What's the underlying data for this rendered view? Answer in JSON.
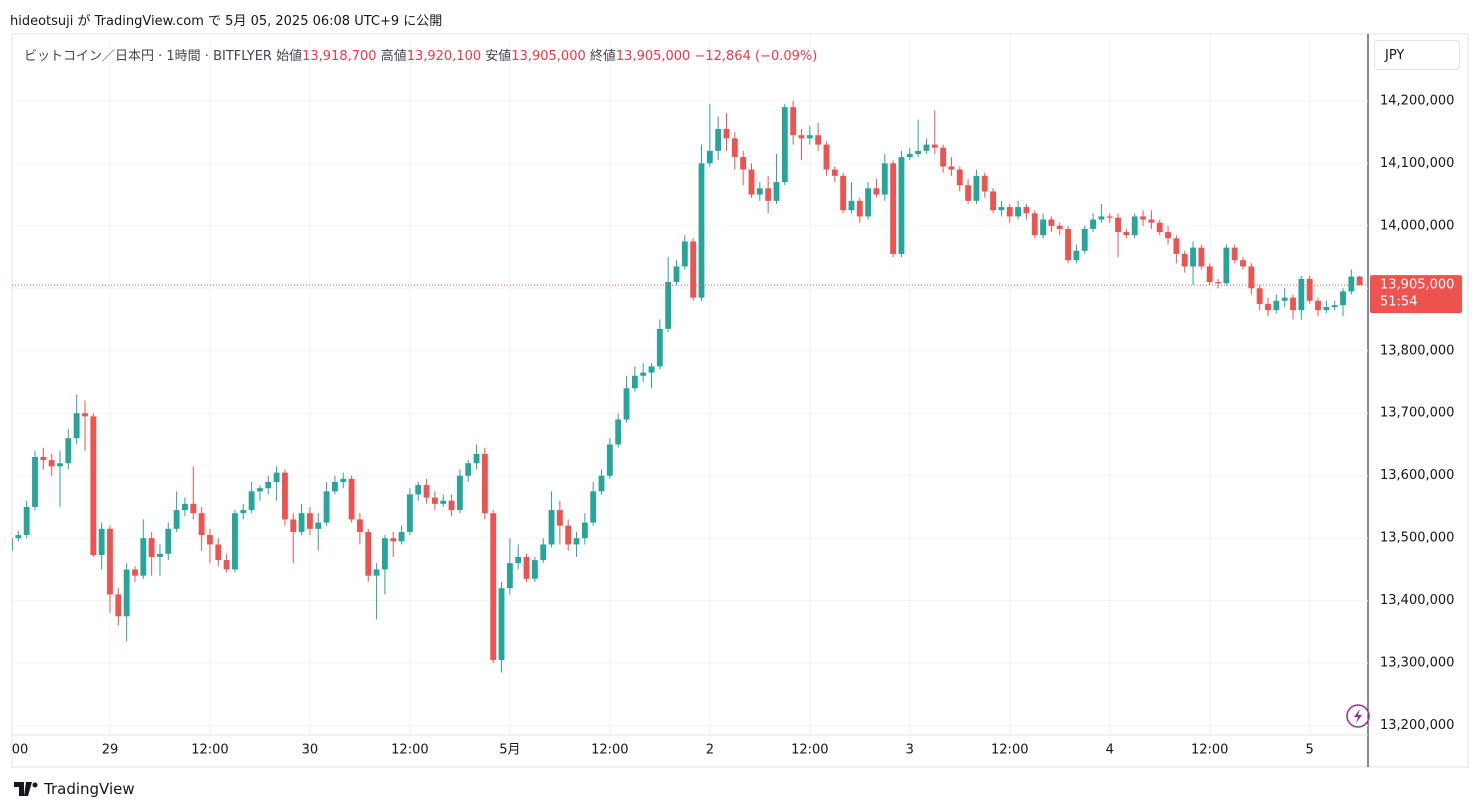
{
  "header": {
    "published": "hideotsuji が TradingView.com で 5月 05, 2025 06:08 UTC+9 に公開"
  },
  "legend": {
    "symbol": "ビットコイン／日本円 · 1時間 · BITFLYER",
    "open_label": "始値",
    "open": "13,918,700",
    "high_label": "高値",
    "high": "13,920,100",
    "low_label": "安値",
    "low": "13,905,000",
    "close_label": "終値",
    "close": "13,905,000",
    "change": "−12,864 (−0.09%)"
  },
  "currency": "JPY",
  "footer": {
    "brand": "TradingView"
  },
  "chart_data": {
    "type": "candlestick",
    "up_color": "#26a69a",
    "down_color": "#ef5350",
    "grid": true,
    "xlim": [
      0,
      163
    ],
    "xticks": [
      {
        "value": 0,
        "label": "00"
      },
      {
        "value": 12,
        "label": "29"
      },
      {
        "value": 24,
        "label": "12:00"
      },
      {
        "value": 36,
        "label": "30"
      },
      {
        "value": 48,
        "label": "12:00"
      },
      {
        "value": 60,
        "label": "5月"
      },
      {
        "value": 72,
        "label": "12:00"
      },
      {
        "value": 84,
        "label": "2"
      },
      {
        "value": 96,
        "label": "12:00"
      },
      {
        "value": 108,
        "label": "3"
      },
      {
        "value": 120,
        "label": "12:00"
      },
      {
        "value": 132,
        "label": "4"
      },
      {
        "value": 144,
        "label": "12:00"
      },
      {
        "value": 156,
        "label": "5"
      }
    ],
    "ylim": [
      13185000,
      14307000
    ],
    "yticks": [
      {
        "value": 13200000,
        "label": "13,200,000"
      },
      {
        "value": 13300000,
        "label": "13,300,000"
      },
      {
        "value": 13400000,
        "label": "13,400,000"
      },
      {
        "value": 13500000,
        "label": "13,500,000"
      },
      {
        "value": 13600000,
        "label": "13,600,000"
      },
      {
        "value": 13700000,
        "label": "13,700,000"
      },
      {
        "value": 13800000,
        "label": "13,800,000"
      },
      {
        "value": 13900000,
        "label": "13,900,000"
      },
      {
        "value": 14000000,
        "label": "14,000,000"
      },
      {
        "value": 14100000,
        "label": "14,100,000"
      },
      {
        "value": 14200000,
        "label": "14,200,000"
      }
    ],
    "last_price": {
      "value": 13905000,
      "label": "13,905,000",
      "countdown": "51:54"
    },
    "candles": [
      [
        13480000,
        13510000,
        13470000,
        13500000
      ],
      [
        13500000,
        13512000,
        13495000,
        13505000
      ],
      [
        13505000,
        13560000,
        13500000,
        13550000
      ],
      [
        13550000,
        13640000,
        13545000,
        13630000
      ],
      [
        13630000,
        13645000,
        13610000,
        13625000
      ],
      [
        13625000,
        13635000,
        13600000,
        13615000
      ],
      [
        13615000,
        13640000,
        13550000,
        13620000
      ],
      [
        13620000,
        13675000,
        13610000,
        13660000
      ],
      [
        13660000,
        13730000,
        13650000,
        13700000
      ],
      [
        13700000,
        13720000,
        13640000,
        13695000
      ],
      [
        13695000,
        13700000,
        13470000,
        13473000
      ],
      [
        13473000,
        13525000,
        13450000,
        13515000
      ],
      [
        13515000,
        13520000,
        13380000,
        13410000
      ],
      [
        13410000,
        13420000,
        13360000,
        13375000
      ],
      [
        13375000,
        13460000,
        13335000,
        13450000
      ],
      [
        13450000,
        13455000,
        13430000,
        13440000
      ],
      [
        13440000,
        13530000,
        13435000,
        13500000
      ],
      [
        13500000,
        13510000,
        13440000,
        13470000
      ],
      [
        13470000,
        13490000,
        13440000,
        13475000
      ],
      [
        13475000,
        13525000,
        13465000,
        13515000
      ],
      [
        13515000,
        13575000,
        13510000,
        13545000
      ],
      [
        13545000,
        13565000,
        13535000,
        13555000
      ],
      [
        13555000,
        13615000,
        13530000,
        13540000
      ],
      [
        13540000,
        13550000,
        13480000,
        13505000
      ],
      [
        13505000,
        13515000,
        13460000,
        13490000
      ],
      [
        13490000,
        13500000,
        13455000,
        13465000
      ],
      [
        13465000,
        13475000,
        13445000,
        13450000
      ],
      [
        13450000,
        13545000,
        13445000,
        13540000
      ],
      [
        13540000,
        13555000,
        13530000,
        13545000
      ],
      [
        13545000,
        13590000,
        13540000,
        13575000
      ],
      [
        13575000,
        13585000,
        13560000,
        13580000
      ],
      [
        13580000,
        13600000,
        13570000,
        13590000
      ],
      [
        13590000,
        13615000,
        13560000,
        13605000
      ],
      [
        13605000,
        13610000,
        13520000,
        13530000
      ],
      [
        13530000,
        13540000,
        13460000,
        13510000
      ],
      [
        13510000,
        13555000,
        13505000,
        13540000
      ],
      [
        13540000,
        13550000,
        13505000,
        13515000
      ],
      [
        13515000,
        13540000,
        13480000,
        13525000
      ],
      [
        13525000,
        13590000,
        13520000,
        13575000
      ],
      [
        13575000,
        13600000,
        13570000,
        13590000
      ],
      [
        13590000,
        13605000,
        13580000,
        13595000
      ],
      [
        13595000,
        13600000,
        13525000,
        13530000
      ],
      [
        13530000,
        13540000,
        13490000,
        13510000
      ],
      [
        13510000,
        13515000,
        13430000,
        13440000
      ],
      [
        13440000,
        13460000,
        13370000,
        13450000
      ],
      [
        13450000,
        13505000,
        13410000,
        13500000
      ],
      [
        13500000,
        13510000,
        13470000,
        13495000
      ],
      [
        13495000,
        13520000,
        13490000,
        13510000
      ],
      [
        13510000,
        13580000,
        13505000,
        13570000
      ],
      [
        13570000,
        13590000,
        13560000,
        13585000
      ],
      [
        13585000,
        13595000,
        13555000,
        13565000
      ],
      [
        13565000,
        13575000,
        13545000,
        13555000
      ],
      [
        13555000,
        13570000,
        13550000,
        13560000
      ],
      [
        13560000,
        13570000,
        13535000,
        13545000
      ],
      [
        13545000,
        13610000,
        13540000,
        13600000
      ],
      [
        13600000,
        13625000,
        13590000,
        13620000
      ],
      [
        13620000,
        13650000,
        13610000,
        13635000
      ],
      [
        13635000,
        13645000,
        13530000,
        13540000
      ],
      [
        13540000,
        13545000,
        13300000,
        13305000
      ],
      [
        13305000,
        13430000,
        13285000,
        13420000
      ],
      [
        13420000,
        13500000,
        13410000,
        13460000
      ],
      [
        13460000,
        13490000,
        13450000,
        13470000
      ],
      [
        13470000,
        13475000,
        13430000,
        13435000
      ],
      [
        13435000,
        13470000,
        13430000,
        13465000
      ],
      [
        13465000,
        13500000,
        13460000,
        13490000
      ],
      [
        13490000,
        13575000,
        13485000,
        13545000
      ],
      [
        13545000,
        13560000,
        13490000,
        13520000
      ],
      [
        13520000,
        13530000,
        13480000,
        13490000
      ],
      [
        13490000,
        13510000,
        13470000,
        13500000
      ],
      [
        13500000,
        13540000,
        13490000,
        13525000
      ],
      [
        13525000,
        13590000,
        13520000,
        13575000
      ],
      [
        13575000,
        13610000,
        13570000,
        13600000
      ],
      [
        13600000,
        13660000,
        13595000,
        13650000
      ],
      [
        13650000,
        13700000,
        13645000,
        13690000
      ],
      [
        13690000,
        13760000,
        13685000,
        13740000
      ],
      [
        13740000,
        13775000,
        13735000,
        13760000
      ],
      [
        13760000,
        13780000,
        13750000,
        13765000
      ],
      [
        13765000,
        13780000,
        13740000,
        13775000
      ],
      [
        13775000,
        13850000,
        13770000,
        13835000
      ],
      [
        13835000,
        13950000,
        13830000,
        13910000
      ],
      [
        13910000,
        13945000,
        13905000,
        13935000
      ],
      [
        13935000,
        13985000,
        13930000,
        13975000
      ],
      [
        13975000,
        13980000,
        13880000,
        13885000
      ],
      [
        13885000,
        14130000,
        13880000,
        14100000
      ],
      [
        14100000,
        14195000,
        14095000,
        14120000
      ],
      [
        14120000,
        14175000,
        14105000,
        14155000
      ],
      [
        14155000,
        14180000,
        14120000,
        14140000
      ],
      [
        14140000,
        14150000,
        14090000,
        14110000
      ],
      [
        14110000,
        14120000,
        14065000,
        14090000
      ],
      [
        14090000,
        14100000,
        14045000,
        14050000
      ],
      [
        14050000,
        14070000,
        14040000,
        14060000
      ],
      [
        14060000,
        14080000,
        14020000,
        14040000
      ],
      [
        14040000,
        14115000,
        14035000,
        14070000
      ],
      [
        14070000,
        14195000,
        14065000,
        14190000
      ],
      [
        14190000,
        14200000,
        14130000,
        14145000
      ],
      [
        14145000,
        14155000,
        14105000,
        14140000
      ],
      [
        14140000,
        14160000,
        14130000,
        14145000
      ],
      [
        14145000,
        14165000,
        14120000,
        14130000
      ],
      [
        14130000,
        14135000,
        14080000,
        14090000
      ],
      [
        14090000,
        14095000,
        14070000,
        14080000
      ],
      [
        14080000,
        14085000,
        14020000,
        14025000
      ],
      [
        14025000,
        14070000,
        14020000,
        14040000
      ],
      [
        14040000,
        14045000,
        14005000,
        14015000
      ],
      [
        14015000,
        14070000,
        14010000,
        14060000
      ],
      [
        14060000,
        14075000,
        14045000,
        14050000
      ],
      [
        14050000,
        14115000,
        14040000,
        14100000
      ],
      [
        14100000,
        14105000,
        13950000,
        13955000
      ],
      [
        13955000,
        14120000,
        13950000,
        14110000
      ],
      [
        14110000,
        14125000,
        14105000,
        14115000
      ],
      [
        14115000,
        14170000,
        14110000,
        14120000
      ],
      [
        14120000,
        14140000,
        14115000,
        14130000
      ],
      [
        14130000,
        14185000,
        14115000,
        14125000
      ],
      [
        14125000,
        14130000,
        14085000,
        14095000
      ],
      [
        14095000,
        14110000,
        14080000,
        14090000
      ],
      [
        14090000,
        14095000,
        14055000,
        14065000
      ],
      [
        14065000,
        14075000,
        14035000,
        14040000
      ],
      [
        14040000,
        14090000,
        14035000,
        14080000
      ],
      [
        14080000,
        14085000,
        14045000,
        14055000
      ],
      [
        14055000,
        14060000,
        14020000,
        14025000
      ],
      [
        14025000,
        14040000,
        14015000,
        14030000
      ],
      [
        14030000,
        14035000,
        14005000,
        14015000
      ],
      [
        14015000,
        14040000,
        14010000,
        14030000
      ],
      [
        14030000,
        14035000,
        14010000,
        14020000
      ],
      [
        14020000,
        14025000,
        13980000,
        13985000
      ],
      [
        13985000,
        14020000,
        13980000,
        14010000
      ],
      [
        14010000,
        14015000,
        13990000,
        14000000
      ],
      [
        14000000,
        14005000,
        13985000,
        13995000
      ],
      [
        13995000,
        14000000,
        13940000,
        13945000
      ],
      [
        13945000,
        13970000,
        13940000,
        13960000
      ],
      [
        13960000,
        14000000,
        13955000,
        13995000
      ],
      [
        13995000,
        14020000,
        13990000,
        14010000
      ],
      [
        14010000,
        14035000,
        14005000,
        14015000
      ],
      [
        14015000,
        14020000,
        14005000,
        14013000
      ],
      [
        14013000,
        14020000,
        13950000,
        13990000
      ],
      [
        13990000,
        13995000,
        13980000,
        13985000
      ],
      [
        13985000,
        14020000,
        13980000,
        14015000
      ],
      [
        14015000,
        14025000,
        14000000,
        14010000
      ],
      [
        14010000,
        14025000,
        13995000,
        14005000
      ],
      [
        14005000,
        14010000,
        13985000,
        13990000
      ],
      [
        13990000,
        14000000,
        13970000,
        13980000
      ],
      [
        13980000,
        13985000,
        13940000,
        13955000
      ],
      [
        13955000,
        13960000,
        13925000,
        13935000
      ],
      [
        13935000,
        13975000,
        13905000,
        13965000
      ],
      [
        13965000,
        13970000,
        13930000,
        13935000
      ],
      [
        13935000,
        13940000,
        13905000,
        13910000
      ],
      [
        13910000,
        13915000,
        13900000,
        13908000
      ],
      [
        13908000,
        13970000,
        13905000,
        13965000
      ],
      [
        13965000,
        13970000,
        13940000,
        13945000
      ],
      [
        13945000,
        13950000,
        13930000,
        13935000
      ],
      [
        13935000,
        13940000,
        13890000,
        13900000
      ],
      [
        13900000,
        13905000,
        13865000,
        13875000
      ],
      [
        13875000,
        13885000,
        13855000,
        13865000
      ],
      [
        13865000,
        13890000,
        13860000,
        13880000
      ],
      [
        13880000,
        13900000,
        13870000,
        13885000
      ],
      [
        13885000,
        13890000,
        13850000,
        13865000
      ],
      [
        13865000,
        13920000,
        13850000,
        13915000
      ],
      [
        13915000,
        13920000,
        13875000,
        13880000
      ],
      [
        13880000,
        13885000,
        13855000,
        13865000
      ],
      [
        13865000,
        13880000,
        13860000,
        13870000
      ],
      [
        13870000,
        13880000,
        13865000,
        13873000
      ],
      [
        13873000,
        13900000,
        13855000,
        13895000
      ],
      [
        13895000,
        13930000,
        13890000,
        13918700
      ],
      [
        13918700,
        13920100,
        13905000,
        13905000
      ]
    ]
  }
}
